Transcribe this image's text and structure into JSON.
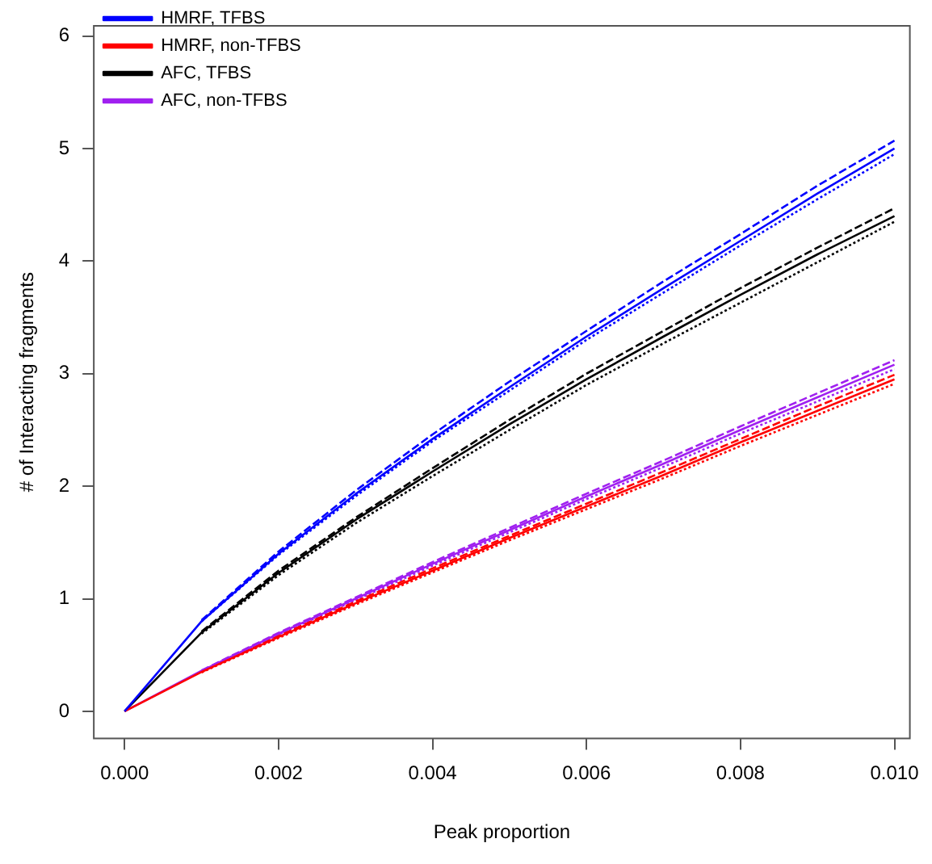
{
  "chart_data": {
    "type": "line",
    "xlabel": "Peak proportion",
    "ylabel": "# of Interacting fragments",
    "x": [
      0,
      0.001,
      0.002,
      0.003,
      0.004,
      0.005,
      0.006,
      0.007,
      0.008,
      0.009,
      0.01
    ],
    "xlim": [
      -0.0004,
      0.0102
    ],
    "xticks": [
      {
        "value": 0,
        "label": "0.000"
      },
      {
        "value": 0.002,
        "label": "0.002"
      },
      {
        "value": 0.004,
        "label": "0.004"
      },
      {
        "value": 0.006,
        "label": "0.006"
      },
      {
        "value": 0.008,
        "label": "0.008"
      },
      {
        "value": 0.01,
        "label": "0.010"
      }
    ],
    "ylim": [
      -0.24,
      6.09
    ],
    "yticks": [
      0,
      1,
      2,
      3,
      4,
      5,
      6
    ],
    "grid": false,
    "legend": "top left",
    "marker": "none",
    "series": [
      {
        "name": "HMRF, TFBS",
        "color": "#0000ff",
        "line_style": "solid",
        "values": [
          0,
          0.8,
          1.4,
          1.93,
          2.42,
          2.88,
          3.33,
          3.76,
          4.18,
          4.6,
          5.0
        ]
      },
      {
        "name": "HMRF, non-TFBS",
        "color": "#ff0000",
        "line_style": "solid",
        "values": [
          0,
          0.35,
          0.66,
          0.96,
          1.25,
          1.54,
          1.82,
          2.1,
          2.39,
          2.67,
          2.95
        ]
      },
      {
        "name": "AFC, TFBS",
        "color": "#000000",
        "line_style": "solid",
        "values": [
          0,
          0.7,
          1.23,
          1.7,
          2.13,
          2.55,
          2.95,
          3.33,
          3.7,
          4.06,
          4.4
        ]
      },
      {
        "name": "AFC, non-TFBS",
        "color": "#a020f0",
        "line_style": "solid",
        "values": [
          0,
          0.36,
          0.69,
          1.0,
          1.31,
          1.61,
          1.91,
          2.2,
          2.5,
          2.79,
          3.08
        ]
      },
      {
        "color": "#0000ff",
        "line_style": "dashed",
        "values": [
          null,
          0.81,
          1.42,
          1.96,
          2.46,
          2.93,
          3.38,
          3.82,
          4.24,
          4.67,
          5.07
        ]
      },
      {
        "color": "#0000ff",
        "line_style": "dotted",
        "values": [
          null,
          0.8,
          1.39,
          1.91,
          2.4,
          2.85,
          3.3,
          3.72,
          4.14,
          4.55,
          4.95
        ]
      },
      {
        "color": "#000000",
        "line_style": "dashed",
        "values": [
          null,
          0.71,
          1.25,
          1.72,
          2.16,
          2.59,
          3.0,
          3.38,
          3.76,
          4.12,
          4.47
        ]
      },
      {
        "color": "#000000",
        "line_style": "dotted",
        "values": [
          null,
          0.69,
          1.21,
          1.67,
          2.09,
          2.5,
          2.9,
          3.27,
          3.63,
          3.99,
          4.35
        ]
      },
      {
        "color": "#ff0000",
        "line_style": "dashed",
        "values": [
          null,
          0.355,
          0.67,
          0.975,
          1.27,
          1.56,
          1.845,
          2.13,
          2.42,
          2.71,
          2.99
        ]
      },
      {
        "color": "#ff0000",
        "line_style": "dotted",
        "values": [
          null,
          0.346,
          0.652,
          0.948,
          1.234,
          1.52,
          1.796,
          2.072,
          2.358,
          2.634,
          2.91
        ]
      },
      {
        "color": "#a020f0",
        "line_style": "dashed",
        "values": [
          null,
          0.364,
          0.698,
          1.012,
          1.326,
          1.63,
          1.934,
          2.228,
          2.532,
          2.826,
          3.12
        ]
      },
      {
        "color": "#a020f0",
        "line_style": "dotted",
        "values": [
          null,
          0.356,
          0.682,
          0.988,
          1.294,
          1.59,
          1.886,
          2.172,
          2.468,
          2.754,
          3.04
        ]
      }
    ]
  }
}
